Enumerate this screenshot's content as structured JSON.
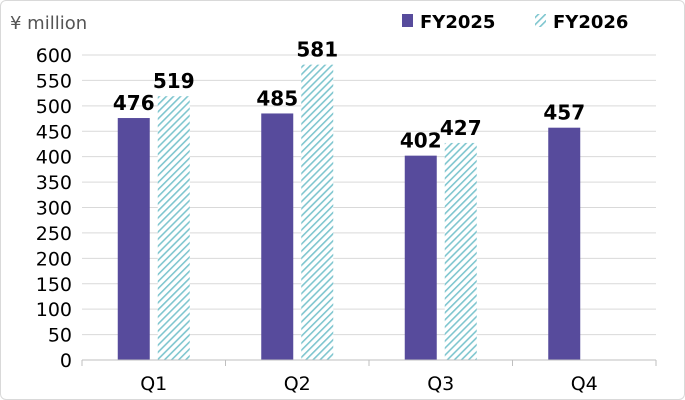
{
  "chart_data": {
    "type": "bar",
    "unit_label": "¥ million",
    "categories": [
      "Q1",
      "Q2",
      "Q3",
      "Q4"
    ],
    "series": [
      {
        "name": "FY2025",
        "values": [
          476,
          485,
          402,
          457
        ],
        "color": "#574b9c",
        "pattern": "solid"
      },
      {
        "name": "FY2026",
        "values": [
          519,
          581,
          427,
          null
        ],
        "color": "#7fc6cf",
        "pattern": "hatched"
      }
    ],
    "ylim": [
      0,
      600
    ],
    "yticks": [
      0,
      50,
      100,
      150,
      200,
      250,
      300,
      350,
      400,
      450,
      500,
      550,
      600
    ],
    "grid": true,
    "legend_position": "top-right",
    "data_labels": true
  }
}
